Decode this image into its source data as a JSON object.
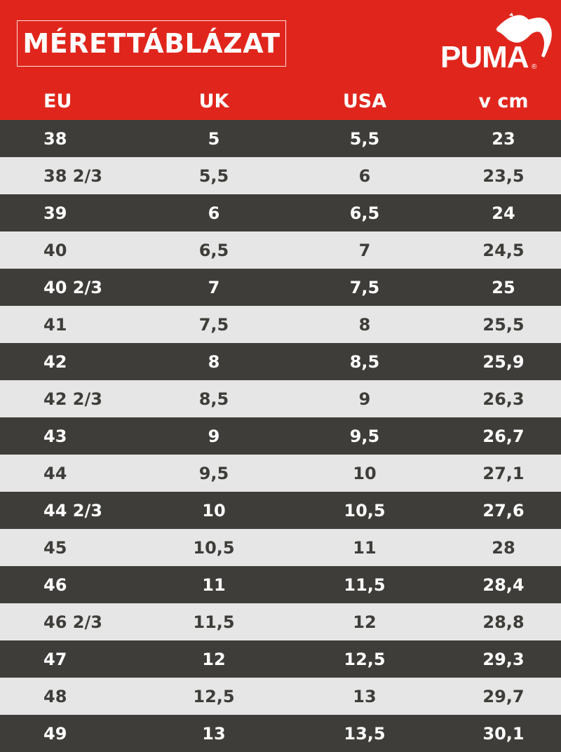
{
  "header": {
    "title": "MÉRETTÁBLÁZAT",
    "brand": "PUMA",
    "registered_mark": "®"
  },
  "columns": {
    "eu": "EU",
    "uk": "UK",
    "usa": "USA",
    "cm": "v cm"
  },
  "rows": [
    {
      "eu": "38",
      "uk": "5",
      "usa": "5,5",
      "cm": "23"
    },
    {
      "eu": "38 2/3",
      "uk": "5,5",
      "usa": "6",
      "cm": "23,5"
    },
    {
      "eu": "39",
      "uk": "6",
      "usa": "6,5",
      "cm": "24"
    },
    {
      "eu": "40",
      "uk": "6,5",
      "usa": "7",
      "cm": "24,5"
    },
    {
      "eu": "40 2/3",
      "uk": "7",
      "usa": "7,5",
      "cm": "25"
    },
    {
      "eu": "41",
      "uk": "7,5",
      "usa": "8",
      "cm": "25,5"
    },
    {
      "eu": "42",
      "uk": "8",
      "usa": "8,5",
      "cm": "25,9"
    },
    {
      "eu": "42 2/3",
      "uk": "8,5",
      "usa": "9",
      "cm": "26,3"
    },
    {
      "eu": "43",
      "uk": "9",
      "usa": "9,5",
      "cm": "26,7"
    },
    {
      "eu": "44",
      "uk": "9,5",
      "usa": "10",
      "cm": "27,1"
    },
    {
      "eu": "44 2/3",
      "uk": "10",
      "usa": "10,5",
      "cm": "27,6"
    },
    {
      "eu": "45",
      "uk": "10,5",
      "usa": "11",
      "cm": "28"
    },
    {
      "eu": "46",
      "uk": "11",
      "usa": "11,5",
      "cm": "28,4"
    },
    {
      "eu": "46 2/3",
      "uk": "11,5",
      "usa": "12",
      "cm": "28,8"
    },
    {
      "eu": "47",
      "uk": "12",
      "usa": "12,5",
      "cm": "29,3"
    },
    {
      "eu": "48",
      "uk": "12,5",
      "usa": "13",
      "cm": "29,7"
    },
    {
      "eu": "49",
      "uk": "13",
      "usa": "13,5",
      "cm": "30,1"
    }
  ],
  "colors": {
    "brand_red": "#e0261c",
    "row_dark": "#3e3d39",
    "row_light": "#e6e6e6",
    "text_light": "#ffffff"
  }
}
